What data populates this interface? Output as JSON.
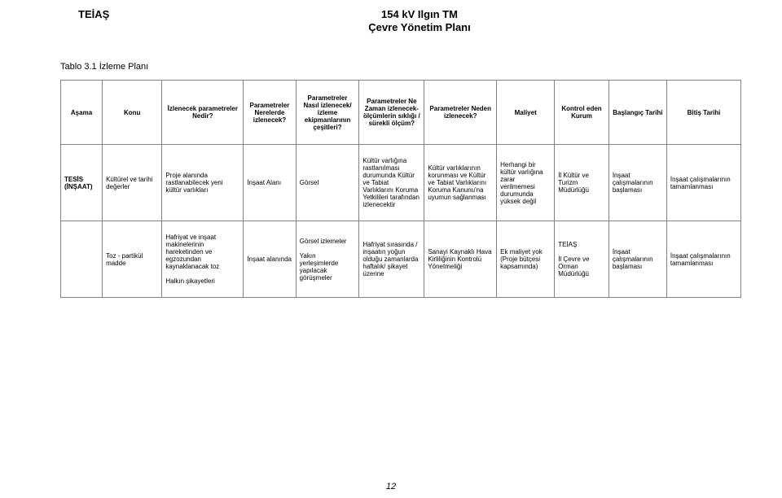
{
  "header": {
    "org": "TEİAŞ",
    "title_line1": "154 kV Ilgın TM",
    "title_line2": "Çevre Yönetim Planı"
  },
  "caption": "Tablo 3.1 İzleme Planı",
  "page_number": "12",
  "columns": [
    "Aşama",
    "Konu",
    "İzlenecek parametreler Nedir?",
    "Parametreler Nerelerde izlenecek?",
    "Parametreler Nasıl izlenecek/ izleme ekipmanlarının çeşitleri?",
    "Parametreler Ne Zaman izlenecek- ölçümlerin sıklığı / sürekli ölçüm?",
    "Parametreler Neden izlenecek?",
    "Maliyet",
    "Kontrol eden Kurum",
    "Başlangıç Tarihi",
    "Bitiş Tarihi"
  ],
  "rows": [
    {
      "cells": [
        "TESİS (İNŞAAT)",
        "Kültürel ve tarihi değerler",
        "Proje alanında rastlanabilecek yeni kültür varlıkları",
        "İnşaat Alanı",
        "Görsel",
        "Kültür varlığına rastlanılması durumunda Kültür ve Tabiat Varlıklarını Koruma Yetkilileri tarafından izlenecektir",
        "Kültür varlıklarının korunması ve Kültür ve Tabiat Varlıklarını Koruma Kanunu'na uyumun sağlanması",
        "Herhangi bir kültür varlığına zarar verilmemesi durumunda yüksek değil",
        "İl Kültür ve Turizm Müdürlüğü",
        "İnşaat çalışmalarının başlaması",
        "İnşaat çalışmalarının tamamlanması"
      ],
      "bold_first": true
    },
    {
      "cells": [
        "",
        "Toz - partikül madde",
        "Hafriyat ve inşaat makinelerinin hareketinden ve egzozundan kaynaklanacak toz\n\nHalkın şikayetleri",
        "İnşaat alanında",
        "Görsel izlemeler\n\nYakın yerleşimlerde yapılacak görüşmeler",
        "Hafriyat sırasında / inşaatın yoğun olduğu zamanlarda haftalık/ şikayet üzerine",
        "Sanayi Kaynaklı Hava Kirliliğinin Kontrolü Yönetmeliği",
        "Ek maliyet yok (Proje bütçesi kapsamında)",
        "TEİAŞ\n\nİl Çevre ve Orman Müdürlüğü",
        "İnşaat çalışmalarının başlaması",
        "İnşaat çalışmalarının tamamlanması"
      ],
      "bold_first": false
    }
  ]
}
